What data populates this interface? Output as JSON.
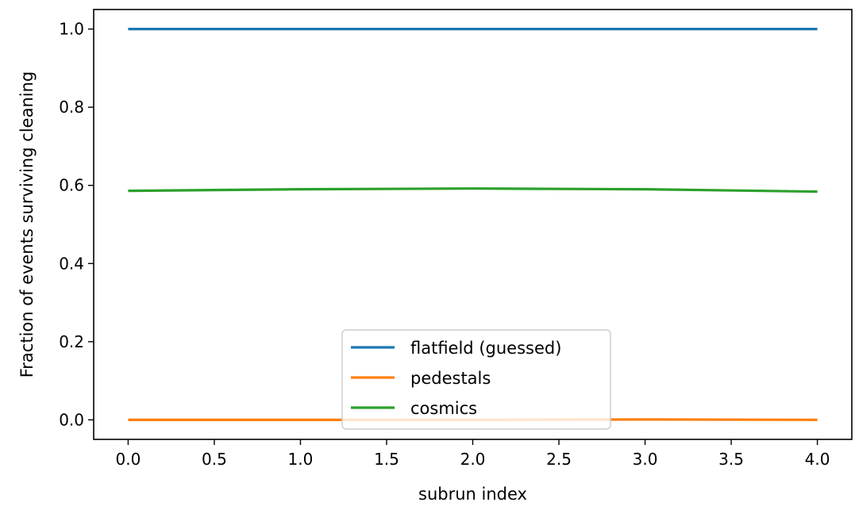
{
  "chart_data": {
    "type": "line",
    "xlabel": "subrun index",
    "ylabel": "Fraction of events surviving cleaning",
    "xlim": [
      -0.2,
      4.2
    ],
    "ylim": [
      -0.05,
      1.05
    ],
    "xticks": [
      "0.0",
      "0.5",
      "1.0",
      "1.5",
      "2.0",
      "2.5",
      "3.0",
      "3.5",
      "4.0"
    ],
    "yticks": [
      "0.0",
      "0.2",
      "0.4",
      "0.6",
      "0.8",
      "1.0"
    ],
    "grid": false,
    "legend_position": "lower-center",
    "x": [
      0,
      1,
      2,
      3,
      4
    ],
    "series": [
      {
        "name": "flatfield (guessed)",
        "color": "#1f77b4",
        "values": [
          1.0,
          1.0,
          1.0,
          1.0,
          1.0
        ]
      },
      {
        "name": "pedestals",
        "color": "#ff7f0e",
        "values": [
          0.0,
          0.0,
          0.0,
          0.001,
          0.0
        ]
      },
      {
        "name": "cosmics",
        "color": "#2ca02c",
        "values": [
          0.586,
          0.59,
          0.592,
          0.59,
          0.584
        ]
      }
    ]
  }
}
